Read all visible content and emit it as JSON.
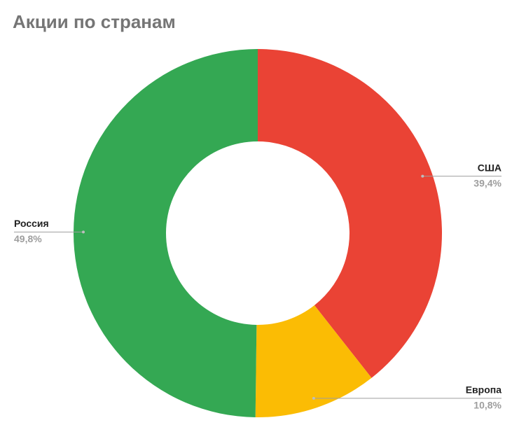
{
  "chart_data": {
    "type": "donut",
    "title": "Акции по странам",
    "categories": [
      "США",
      "Европа",
      "Россия"
    ],
    "values": [
      39.4,
      10.8,
      49.8
    ],
    "value_labels": [
      "39,4%",
      "10,8%",
      "49,8%"
    ],
    "colors": [
      "#ea4335",
      "#fbbc04",
      "#34a853"
    ]
  }
}
